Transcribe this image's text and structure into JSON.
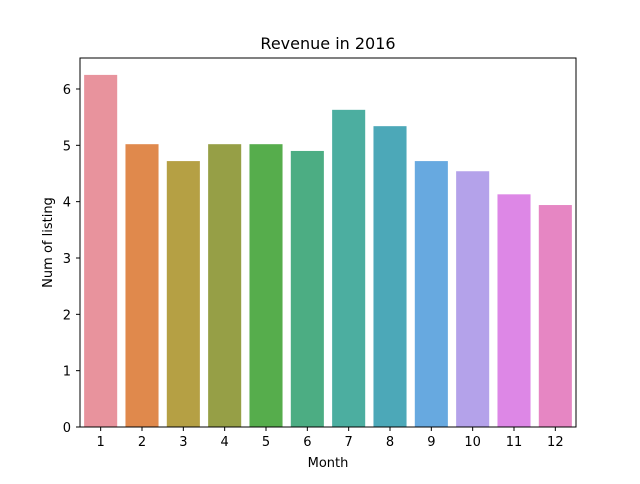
{
  "chart_data": {
    "type": "bar",
    "title": "Revenue in 2016",
    "xlabel": "Month",
    "ylabel": "Num of listing",
    "categories": [
      "1",
      "2",
      "3",
      "4",
      "5",
      "6",
      "7",
      "8",
      "9",
      "10",
      "11",
      "12"
    ],
    "values": [
      6.25,
      5.02,
      4.72,
      5.02,
      5.02,
      4.9,
      5.63,
      5.34,
      4.72,
      4.54,
      4.13,
      3.94
    ],
    "ylim": [
      0,
      6.55
    ],
    "yticks": [
      "0",
      "1",
      "2",
      "3",
      "4",
      "5",
      "6"
    ],
    "grid": false,
    "legend": "none",
    "colors": [
      "#e8939d",
      "#e0894c",
      "#b5a044",
      "#969f46",
      "#56ad4c",
      "#4cad83",
      "#4caea0",
      "#4ca8b8",
      "#67a9e0",
      "#b4a2ea",
      "#dd87e6",
      "#e686c3"
    ]
  }
}
